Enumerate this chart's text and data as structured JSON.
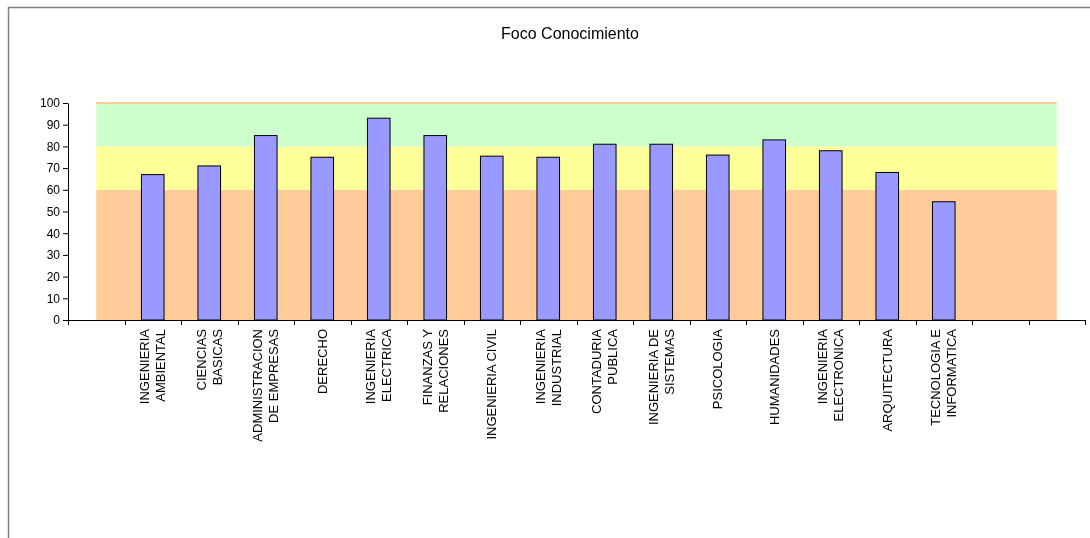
{
  "chart_data": {
    "type": "bar",
    "title": "Foco Conocimiento",
    "categories": [
      null,
      "INGENIERIA AMBIENTAL",
      "CIENCIAS BASICAS",
      "ADMINISTRACION DE EMPRESAS",
      "DERECHO",
      "INGENIERIA ELECTRICA",
      "FINANZAS Y RELACIONES",
      "INGENIERIA CIVIL",
      "INGENIERIA INDUSTRIAL",
      "CONTADURIA PUBLICA",
      "INGENIERIA DE SISTEMAS",
      "PSICOLOGIA",
      "HUMANIDADES",
      "INGENIERIA ELECTRONICA",
      "ARQUITECTURA",
      "TECNOLOGIA E INFORMATICA",
      null,
      null
    ],
    "values": [
      null,
      67,
      71,
      85,
      75,
      93,
      85,
      75.5,
      75,
      81,
      81,
      76,
      83,
      78,
      68,
      54.5,
      null,
      null
    ],
    "color": "#9999ff",
    "ylim": [
      0,
      100
    ],
    "yticks": [
      0,
      10,
      20,
      30,
      40,
      50,
      60,
      70,
      80,
      90,
      100
    ],
    "bands": [
      {
        "axis": "y",
        "from": 0,
        "to": 60,
        "color": "#ffcc99"
      },
      {
        "axis": "y",
        "from": 60,
        "to": 80,
        "color": "#ffff99"
      },
      {
        "axis": "y",
        "from": 80,
        "to": 100,
        "color": "#ccffcc"
      }
    ],
    "ref_lines": [
      {
        "axis": "y",
        "value": 100,
        "color": "#ffcc99"
      }
    ]
  }
}
